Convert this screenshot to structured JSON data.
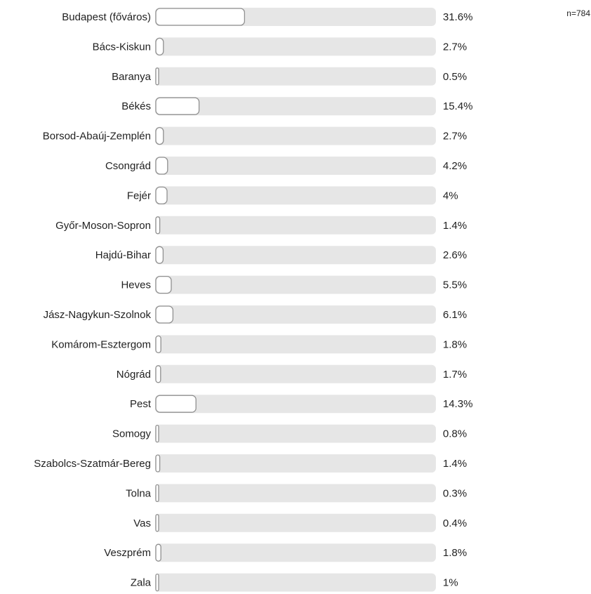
{
  "chart_data": {
    "type": "bar",
    "orientation": "horizontal",
    "n_label": "n=784",
    "categories": [
      "Budapest (főváros)",
      "Bács-Kiskun",
      "Baranya",
      "Békés",
      "Borsod-Abaúj-Zemplén",
      "Csongrád",
      "Fejér",
      "Győr-Moson-Sopron",
      "Hajdú-Bihar",
      "Heves",
      "Jász-Nagykun-Szolnok",
      "Komárom-Esztergom",
      "Nógrád",
      "Pest",
      "Somogy",
      "Szabolcs-Szatmár-Bereg",
      "Tolna",
      "Vas",
      "Veszprém",
      "Zala"
    ],
    "values": [
      31.6,
      2.7,
      0.5,
      15.4,
      2.7,
      4.2,
      4.0,
      1.4,
      2.6,
      5.5,
      6.1,
      1.8,
      1.7,
      14.3,
      0.8,
      1.4,
      0.3,
      0.4,
      1.8,
      1.0
    ],
    "value_labels": [
      "31.6%",
      "2.7%",
      "0.5%",
      "15.4%",
      "2.7%",
      "4.2%",
      "4%",
      "1.4%",
      "2.6%",
      "5.5%",
      "6.1%",
      "1.8%",
      "1.7%",
      "14.3%",
      "0.8%",
      "1.4%",
      "0.3%",
      "0.4%",
      "1.8%",
      "1%"
    ],
    "xlim": [
      0,
      100
    ],
    "grid": false,
    "colors": {
      "track": "#e6e6e6",
      "bar_fill": "#ffffff",
      "bar_stroke": "#909090"
    }
  }
}
